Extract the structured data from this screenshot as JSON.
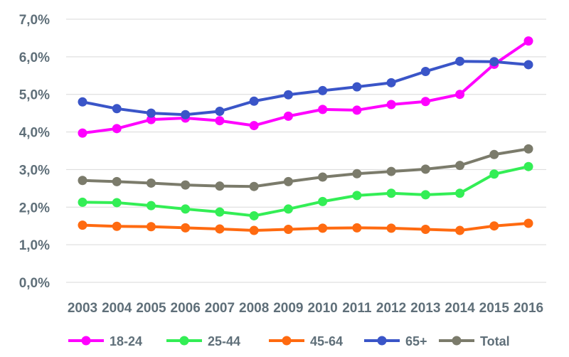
{
  "chart_data": {
    "type": "line",
    "title": "",
    "xlabel": "",
    "ylabel": "",
    "categories": [
      "2003",
      "2004",
      "2005",
      "2006",
      "2007",
      "2008",
      "2009",
      "2010",
      "2011",
      "2012",
      "2013",
      "2014",
      "2015",
      "2016"
    ],
    "ylim": [
      0,
      7
    ],
    "yticks": [
      0,
      1,
      2,
      3,
      4,
      5,
      6,
      7
    ],
    "ytick_labels": [
      "0,0%",
      "1,0%",
      "2,0%",
      "3,0%",
      "4,0%",
      "5,0%",
      "6,0%",
      "7,0%"
    ],
    "grid": true,
    "legend_position": "bottom",
    "series": [
      {
        "name": "18-24",
        "color": "#ff00ff",
        "values": [
          3.97,
          4.09,
          4.33,
          4.37,
          4.3,
          4.17,
          4.42,
          4.6,
          4.58,
          4.73,
          4.81,
          5.0,
          5.8,
          6.42
        ]
      },
      {
        "name": "25-44",
        "color": "#33ee55",
        "values": [
          2.13,
          2.12,
          2.04,
          1.95,
          1.87,
          1.77,
          1.95,
          2.15,
          2.31,
          2.37,
          2.33,
          2.37,
          2.88,
          3.08
        ]
      },
      {
        "name": "45-64",
        "color": "#ff6a10",
        "values": [
          1.52,
          1.49,
          1.48,
          1.45,
          1.42,
          1.38,
          1.41,
          1.44,
          1.45,
          1.44,
          1.41,
          1.38,
          1.5,
          1.57
        ]
      },
      {
        "name": "65+",
        "color": "#3a55c8",
        "values": [
          4.8,
          4.62,
          4.5,
          4.46,
          4.55,
          4.82,
          4.99,
          5.1,
          5.2,
          5.31,
          5.61,
          5.88,
          5.87,
          5.79
        ]
      },
      {
        "name": "Total",
        "color": "#7b7b6b",
        "values": [
          2.71,
          2.68,
          2.64,
          2.59,
          2.56,
          2.55,
          2.68,
          2.8,
          2.89,
          2.95,
          3.01,
          3.11,
          3.4,
          3.55
        ]
      }
    ]
  }
}
